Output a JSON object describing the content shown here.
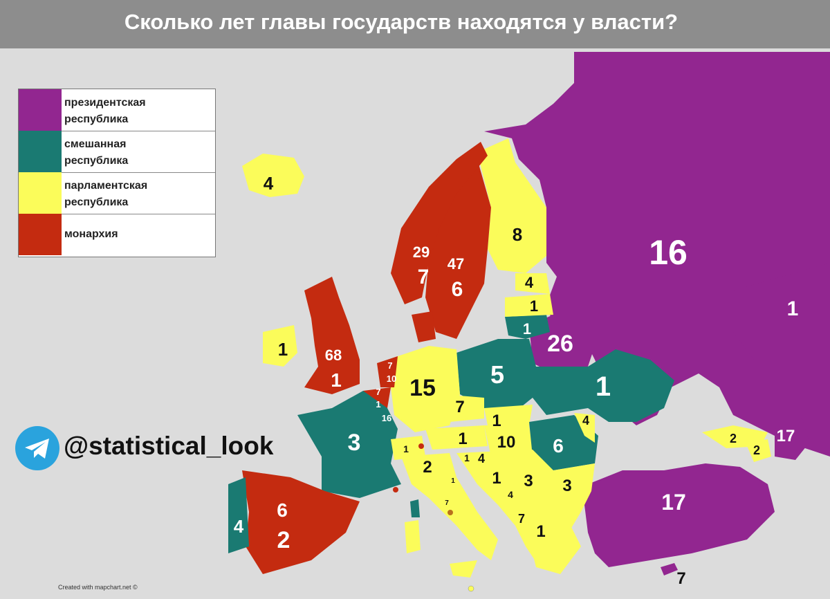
{
  "title": "Сколько лет главы государств находятся у власти?",
  "legend": [
    {
      "label": "президентская\nреспублика",
      "color": "#922690"
    },
    {
      "label": "смешанная\nреспублика",
      "color": "#1a7a72"
    },
    {
      "label": "парламентская\nреспублика",
      "color": "#fbfc5a"
    },
    {
      "label": "монархия",
      "color": "#c42b10"
    }
  ],
  "colors": {
    "presidential": "#922690",
    "mixed": "#1a7a72",
    "parliamentary": "#fbfc5a",
    "monarchy": "#c42b10",
    "background": "#dcdcdc",
    "title_bar": "#8d8d8d"
  },
  "channel": {
    "handle": "@statistical_look",
    "icon": "telegram-icon"
  },
  "credit": "Created with mapchart.net ©",
  "labels": {
    "russia": "16",
    "kazakhstan": "1",
    "turkey": "17",
    "cyprus": "7",
    "georgia": "2",
    "armenia": "2",
    "azerbaijan": "17",
    "iceland": "4",
    "ireland": "1",
    "uk_monarch": "68",
    "uk_pm": "1",
    "norway_monarch": "29",
    "norway_pm": "7",
    "sweden_monarch": "47",
    "sweden_pm": "6",
    "finland": "8",
    "estonia": "4",
    "latvia": "1",
    "lithuania": "1",
    "belarus": "26",
    "poland": "5",
    "ukraine": "1",
    "moldova": "4",
    "romania": "6",
    "germany": "15",
    "czech": "7",
    "slovakia": "1",
    "austria": "1",
    "hungary": "10",
    "switzerland": "1",
    "italy": "2",
    "slovenia": "1",
    "croatia": "4",
    "bosnia": "1",
    "serbia": "3",
    "bulgaria": "3",
    "montenegro": "4",
    "albania": "7",
    "greece": "1",
    "france": "3",
    "spain_monarch": "6",
    "spain_pm": "2",
    "portugal": "4",
    "nl_monarch": "7",
    "nl_pm": "10",
    "be_monarch": "7",
    "be_pm": "1",
    "luxembourg": "16",
    "vatican": "7",
    "san_marino": "1"
  }
}
